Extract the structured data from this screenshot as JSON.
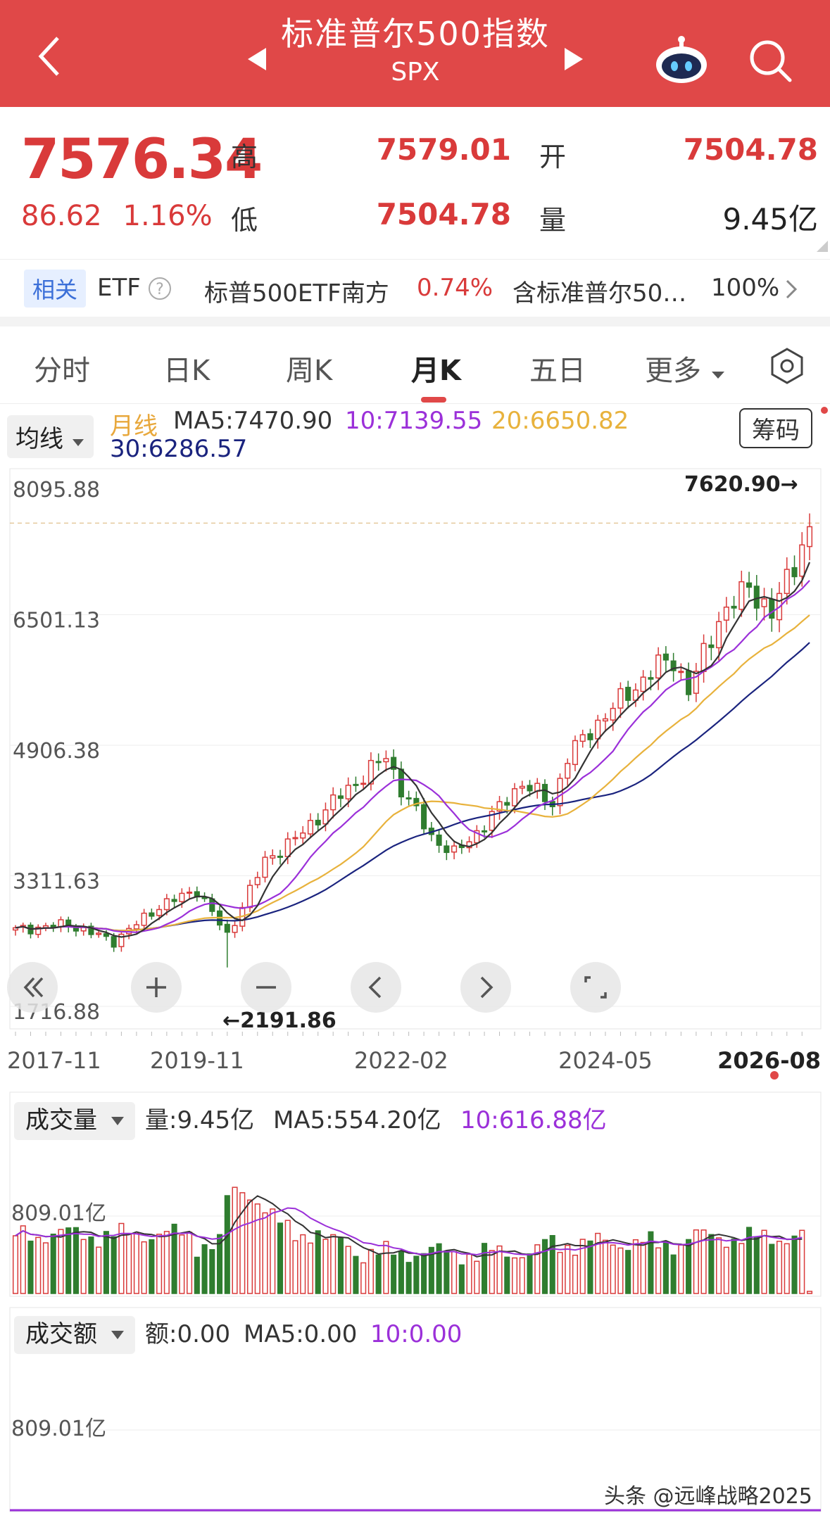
{
  "header": {
    "title": "标准普尔500指数",
    "subtitle": "SPX",
    "back_icon": "chevron-left-icon",
    "robot_icon": "robot-icon",
    "search_icon": "search-icon",
    "colors": {
      "header_bg": "#e04848",
      "up": "#d93a3a",
      "down": "#2f7d2f"
    }
  },
  "quote": {
    "price": "7576.34",
    "change": "86.62",
    "change_pct": "1.16%",
    "high_label": "高",
    "high": "7579.01",
    "low_label": "低",
    "low": "7504.78",
    "open_label": "开",
    "open": "7504.78",
    "volume_label": "量",
    "volume": "9.45亿"
  },
  "etf": {
    "tag": "相关",
    "label": "ETF",
    "fund1_name": "标普500ETF南方",
    "fund1_pct": "0.74%",
    "fund2_name": "含标准普尔50…",
    "fund2_pct": "100%"
  },
  "tabs": [
    "分时",
    "日K",
    "周K",
    "月K",
    "五日",
    "更多"
  ],
  "active_tab": "月K",
  "ma": {
    "selector": "均线",
    "type": "月线",
    "ma5": "MA5:7470.90",
    "ma10": "10:7139.55",
    "ma20": "20:6650.82",
    "ma30": "30:6286.57",
    "chips_button": "筹码",
    "colors": {
      "ma5": "#333333",
      "ma10": "#9b30d9",
      "ma20": "#e8b23c",
      "ma30": "#1a237e"
    }
  },
  "chart": {
    "y_labels": [
      "8095.88",
      "6501.13",
      "4906.38",
      "3311.63",
      "1716.88"
    ],
    "max_label": "7620.90→",
    "min_label": "←2191.86",
    "x_labels": [
      "2017-11",
      "2019-11",
      "2022-02",
      "2024-05",
      "2026-08"
    ]
  },
  "volume": {
    "selector": "成交量",
    "vol": "量:9.45亿",
    "ma5": "MA5:554.20亿",
    "ma10": "10:616.88亿",
    "axis_label": "809.01亿"
  },
  "amount": {
    "selector": "成交额",
    "amt": "额:0.00",
    "ma5": "MA5:0.00",
    "ma10": "10:0.00",
    "axis_label": "809.01亿"
  },
  "watermark": "头条 @远峰战略2025",
  "chart_data": {
    "type": "candlestick",
    "title": "标准普尔500指数 月K",
    "x_start": "2017-11",
    "x_end": "2026-08",
    "ylim": [
      1716.88,
      8095.88
    ],
    "max": 7620.9,
    "min": 2191.86,
    "close_points": [
      [
        "2017-11",
        2650
      ],
      [
        "2018-06",
        2720
      ],
      [
        "2018-12",
        2510
      ],
      [
        "2019-06",
        2940
      ],
      [
        "2019-11",
        3140
      ],
      [
        "2020-03",
        2580
      ],
      [
        "2020-08",
        3500
      ],
      [
        "2020-12",
        3760
      ],
      [
        "2021-06",
        4300
      ],
      [
        "2021-12",
        4770
      ],
      [
        "2022-02",
        4380
      ],
      [
        "2022-06",
        3790
      ],
      [
        "2022-09",
        3580
      ],
      [
        "2022-12",
        3840
      ],
      [
        "2023-06",
        4450
      ],
      [
        "2023-10",
        4190
      ],
      [
        "2023-12",
        4770
      ],
      [
        "2024-05",
        5280
      ],
      [
        "2024-12",
        5880
      ],
      [
        "2025-02",
        5950
      ],
      [
        "2025-04",
        5570
      ],
      [
        "2025-08",
        6450
      ],
      [
        "2025-12",
        6850
      ],
      [
        "2026-03",
        6500
      ],
      [
        "2026-08",
        7576.34
      ]
    ]
  }
}
